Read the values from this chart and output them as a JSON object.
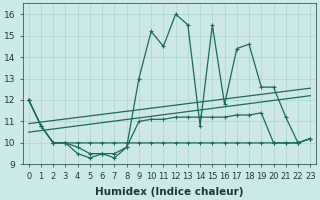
{
  "background_color": "#cce9e8",
  "grid_color": "#aad4d4",
  "line_color": "#1a6b5a",
  "xlim": [
    -0.5,
    23.5
  ],
  "ylim": [
    9.0,
    16.5
  ],
  "xticks": [
    0,
    1,
    2,
    3,
    4,
    5,
    6,
    7,
    8,
    9,
    10,
    11,
    12,
    13,
    14,
    15,
    16,
    17,
    18,
    19,
    20,
    21,
    22,
    23
  ],
  "yticks": [
    9,
    10,
    11,
    12,
    13,
    14,
    15,
    16
  ],
  "xlabel": "Humidex (Indice chaleur)",
  "font_color": "#1a3a3a",
  "tick_fontsize": 6,
  "label_fontsize": 7.5,
  "series_main_x": [
    0,
    1,
    2,
    3,
    4,
    5,
    6,
    7,
    8,
    9,
    10,
    11,
    12,
    13,
    14,
    15,
    16,
    17,
    18,
    19,
    20,
    21,
    22,
    23
  ],
  "series_main_y": [
    12.0,
    10.8,
    10.0,
    10.0,
    9.8,
    9.5,
    9.5,
    9.5,
    9.8,
    13.0,
    15.2,
    14.5,
    16.0,
    15.5,
    10.8,
    15.5,
    11.8,
    14.4,
    14.6,
    12.6,
    12.6,
    11.2,
    10.0,
    10.2
  ],
  "series_low_x": [
    0,
    1,
    2,
    3,
    4,
    5,
    6,
    7,
    8,
    9,
    10,
    11,
    12,
    13,
    14,
    15,
    16,
    17,
    18,
    19,
    20,
    21,
    22,
    23
  ],
  "series_low_y": [
    12.0,
    10.8,
    10.0,
    10.0,
    9.5,
    9.3,
    9.5,
    9.3,
    9.8,
    11.0,
    11.1,
    11.1,
    11.2,
    11.2,
    11.2,
    11.2,
    11.2,
    11.3,
    11.3,
    11.4,
    10.0,
    10.0,
    10.0,
    10.2
  ],
  "series_trend1_x": [
    0,
    23
  ],
  "series_trend1_y": [
    10.9,
    12.55
  ],
  "series_trend2_x": [
    0,
    23
  ],
  "series_trend2_y": [
    10.5,
    12.2
  ],
  "series_flat_x": [
    0,
    1,
    2,
    3,
    4,
    5,
    6,
    7,
    8,
    9,
    10,
    11,
    12,
    13,
    14,
    15,
    16,
    17,
    18,
    19,
    20,
    21,
    22,
    23
  ],
  "series_flat_y": [
    12.0,
    10.8,
    10.0,
    10.0,
    10.0,
    10.0,
    10.0,
    10.0,
    10.0,
    10.0,
    10.0,
    10.0,
    10.0,
    10.0,
    10.0,
    10.0,
    10.0,
    10.0,
    10.0,
    10.0,
    10.0,
    10.0,
    10.0,
    10.2
  ]
}
